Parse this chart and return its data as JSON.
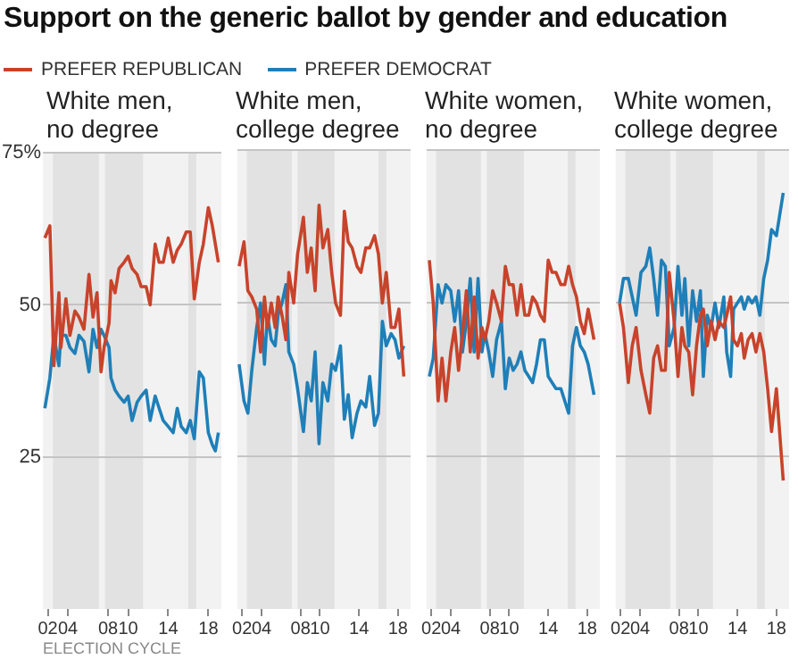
{
  "chart_data": [
    {
      "type": "line",
      "title": "Support on the generic ballot by gender and education",
      "subtitle": "White men,\nno degree",
      "xlabel": "ELECTION CYCLE",
      "legend": "top",
      "grid": "y",
      "x": [
        2001.7,
        2002.2,
        2002.6,
        2003.1,
        2003.3,
        2003.8,
        2004.2,
        2004.7,
        2005.1,
        2005.6,
        2006.1,
        2006.5,
        2006.9,
        2007.3,
        2007.6,
        2008.1,
        2008.3,
        2008.7,
        2009.1,
        2009.6,
        2010,
        2010.4,
        2010.9,
        2011.3,
        2011.8,
        2012.2,
        2012.7,
        2013.1,
        2013.5,
        2014,
        2014.5,
        2014.9,
        2015.3,
        2015.8,
        2016.2,
        2016.6,
        2017.1,
        2017.5,
        2018,
        2018.4,
        2018.7,
        2019.0
      ],
      "series": [
        {
          "name": "PREFER REPUBLICAN",
          "color": "#c8432b",
          "values": [
            61,
            63,
            40,
            52,
            43,
            51,
            45,
            49,
            48,
            46,
            55,
            48,
            52,
            39,
            43,
            47,
            54,
            52,
            56,
            57,
            58,
            56,
            55,
            53,
            53,
            50,
            60,
            57,
            57,
            61,
            57,
            59,
            60,
            62,
            62,
            51,
            57,
            60,
            66,
            63,
            60,
            57
          ]
        },
        {
          "name": "PREFER DEMOCRAT",
          "color": "#1f7fb8",
          "values": [
            33,
            38,
            45,
            40,
            45,
            45,
            43,
            42,
            45,
            44,
            39,
            46,
            43,
            46,
            45,
            43,
            38,
            36,
            35,
            34,
            35,
            31,
            34,
            35,
            36,
            31,
            35,
            33,
            31,
            30,
            29,
            33,
            30,
            29,
            31,
            28,
            39,
            38,
            29,
            27,
            26,
            29
          ]
        }
      ],
      "xlim": [
        2001.5,
        2019.3
      ],
      "xticks": [
        {
          "value": 2002,
          "label": "02"
        },
        {
          "value": 2004,
          "label": "04"
        },
        {
          "value": 2008,
          "label": "08"
        },
        {
          "value": 2010,
          "label": "10"
        },
        {
          "value": 2014,
          "label": "14"
        },
        {
          "value": 2018,
          "label": "18"
        }
      ],
      "ylim": [
        0,
        75
      ],
      "yticks": [
        {
          "value": 75,
          "label": "75%"
        },
        50,
        25
      ],
      "bands": [
        {
          "axis": "x",
          "from": 2002.5,
          "to": 2007.1,
          "color": "#e2e2e2"
        },
        {
          "axis": "x",
          "from": 2007.7,
          "to": 2011.5,
          "color": "#e2e2e2"
        },
        {
          "axis": "x",
          "from": 2016.0,
          "to": 2016.8,
          "color": "#e2e2e2"
        }
      ]
    },
    {
      "type": "line",
      "title": "White men,\ncollege degree",
      "grid": "y",
      "tick_labels": "x",
      "x": [
        2001.7,
        2002.2,
        2002.6,
        2003.0,
        2003.5,
        2003.9,
        2004.3,
        2004.6,
        2005.0,
        2005.4,
        2005.7,
        2006.1,
        2006.5,
        2006.8,
        2007.3,
        2007.7,
        2008.3,
        2008.7,
        2009.1,
        2009.5,
        2009.9,
        2010.3,
        2010.8,
        2011.2,
        2011.6,
        2012.1,
        2012.5,
        2012.9,
        2013.3,
        2013.8,
        2014.2,
        2014.7,
        2015.1,
        2015.6,
        2016.0,
        2016.4,
        2016.8,
        2017.3,
        2017.7,
        2018.1,
        2018.6
      ],
      "series": [
        {
          "color": "#c8432b",
          "values": [
            56,
            60,
            52,
            51,
            49,
            42,
            51,
            46,
            50,
            46,
            51,
            48,
            44,
            55,
            50,
            58,
            64,
            55,
            59,
            52,
            66,
            59,
            62,
            55,
            50,
            48,
            65,
            60,
            59,
            56,
            55,
            59,
            59,
            61,
            58,
            50,
            55,
            46,
            46,
            49,
            38
          ]
        },
        {
          "color": "#1f7fb8",
          "values": [
            40,
            34,
            32,
            39,
            46,
            50,
            40,
            48,
            44,
            43,
            48,
            50,
            53,
            42,
            40,
            36,
            29,
            37,
            34,
            42,
            27,
            37,
            34,
            40,
            39,
            43,
            31,
            35,
            28,
            32,
            34,
            33,
            38,
            30,
            32,
            47,
            43,
            45,
            44,
            41,
            43
          ]
        }
      ],
      "xlim": [
        2001.5,
        2019.3
      ],
      "xticks": [
        {
          "value": 2002,
          "label": "02"
        },
        {
          "value": 2004,
          "label": "04"
        },
        {
          "value": 2008,
          "label": "08"
        },
        {
          "value": 2010,
          "label": "10"
        },
        {
          "value": 2014,
          "label": "14"
        },
        {
          "value": 2018,
          "label": "18"
        }
      ],
      "ylim": [
        0,
        75
      ],
      "yticks": [
        75,
        50,
        25
      ],
      "bands": [
        {
          "axis": "x",
          "from": 2002.5,
          "to": 2007.1,
          "color": "#e2e2e2"
        },
        {
          "axis": "x",
          "from": 2007.7,
          "to": 2011.5,
          "color": "#e2e2e2"
        },
        {
          "axis": "x",
          "from": 2016.0,
          "to": 2016.8,
          "color": "#e2e2e2"
        }
      ]
    },
    {
      "type": "line",
      "title": "White women,\nno degree",
      "grid": "y",
      "tick_labels": "x",
      "x": [
        2001.8,
        2002.2,
        2002.7,
        2003.1,
        2003.5,
        2004.0,
        2004.4,
        2004.8,
        2005.2,
        2005.6,
        2006.0,
        2006.4,
        2006.8,
        2007.2,
        2007.5,
        2007.9,
        2008.3,
        2008.7,
        2009.2,
        2009.6,
        2010.0,
        2010.4,
        2010.8,
        2011.2,
        2011.6,
        2012.0,
        2012.4,
        2012.8,
        2013.2,
        2013.6,
        2014.0,
        2014.4,
        2014.8,
        2015.3,
        2015.7,
        2016.1,
        2016.5,
        2016.9,
        2017.3,
        2017.7,
        2018.1,
        2018.7
      ],
      "series": [
        {
          "color": "#c8432b",
          "values": [
            57,
            50,
            34,
            41,
            34,
            42,
            46,
            39,
            45,
            52,
            42,
            51,
            41,
            46,
            44,
            47,
            52,
            50,
            47,
            56,
            53,
            53,
            48,
            53,
            48,
            48,
            51,
            50,
            48,
            47,
            57,
            55,
            55,
            53,
            53,
            56,
            53,
            51,
            47,
            45,
            49,
            44
          ]
        },
        {
          "color": "#1f7fb8",
          "values": [
            38,
            41,
            53,
            50,
            53,
            52,
            47,
            52,
            42,
            47,
            54,
            42,
            54,
            42,
            45,
            42,
            38,
            44,
            47,
            36,
            41,
            39,
            40,
            42,
            39,
            38,
            37,
            40,
            44,
            44,
            38,
            37,
            36,
            36,
            34,
            32,
            43,
            46,
            43,
            42,
            40,
            35
          ]
        }
      ],
      "xlim": [
        2001.5,
        2019.3
      ],
      "xticks": [
        {
          "value": 2002,
          "label": "02"
        },
        {
          "value": 2004,
          "label": "04"
        },
        {
          "value": 2008,
          "label": "08"
        },
        {
          "value": 2010,
          "label": "10"
        },
        {
          "value": 2014,
          "label": "14"
        },
        {
          "value": 2018,
          "label": "18"
        }
      ],
      "ylim": [
        0,
        75
      ],
      "yticks": [
        75,
        50,
        25
      ],
      "bands": [
        {
          "axis": "x",
          "from": 2002.5,
          "to": 2007.1,
          "color": "#e2e2e2"
        },
        {
          "axis": "x",
          "from": 2007.7,
          "to": 2011.5,
          "color": "#e2e2e2"
        },
        {
          "axis": "x",
          "from": 2016.0,
          "to": 2016.8,
          "color": "#e2e2e2"
        }
      ]
    },
    {
      "type": "line",
      "title": "White women,\ncollege degree",
      "grid": "y",
      "tick_labels": "x",
      "x": [
        2001.9,
        2002.3,
        2002.8,
        2003.2,
        2003.6,
        2004.1,
        2004.6,
        2005.0,
        2005.4,
        2005.8,
        2006.2,
        2006.6,
        2007.0,
        2007.5,
        2007.9,
        2008.3,
        2008.6,
        2009.0,
        2009.4,
        2009.8,
        2010.2,
        2010.5,
        2010.9,
        2011.3,
        2011.7,
        2012.1,
        2012.6,
        2012.9,
        2013.3,
        2013.6,
        2014.0,
        2014.4,
        2014.7,
        2015.1,
        2015.5,
        2015.9,
        2016.3,
        2016.7,
        2017.1,
        2017.5,
        2018.0,
        2018.7
      ],
      "series": [
        {
          "color": "#c8432b",
          "values": [
            50,
            46,
            37,
            43,
            46,
            39,
            35,
            32,
            41,
            43,
            39,
            39,
            55,
            47,
            38,
            46,
            43,
            42,
            35,
            43,
            48,
            49,
            43,
            47,
            44,
            47,
            46,
            48,
            51,
            44,
            43,
            45,
            41,
            44,
            45,
            42,
            45,
            42,
            36,
            29,
            36,
            21
          ]
        },
        {
          "color": "#1f7fb8",
          "values": [
            50,
            54,
            54,
            51,
            48,
            55,
            56,
            59,
            54,
            48,
            57,
            56,
            43,
            46,
            56,
            48,
            54,
            43,
            52,
            47,
            52,
            38,
            48,
            46,
            50,
            46,
            51,
            42,
            38,
            49,
            50,
            51,
            49,
            51,
            50,
            51,
            48,
            54,
            57,
            62,
            61,
            68
          ]
        }
      ],
      "xlim": [
        2001.5,
        2019.3
      ],
      "xticks": [
        {
          "value": 2002,
          "label": "02"
        },
        {
          "value": 2004,
          "label": "04"
        },
        {
          "value": 2008,
          "label": "08"
        },
        {
          "value": 2010,
          "label": "10"
        },
        {
          "value": 2014,
          "label": "14"
        },
        {
          "value": 2018,
          "label": "18"
        }
      ],
      "ylim": [
        0,
        75
      ],
      "yticks": [
        75,
        50,
        25
      ],
      "bands": [
        {
          "axis": "x",
          "from": 2002.5,
          "to": 2007.1,
          "color": "#e2e2e2"
        },
        {
          "axis": "x",
          "from": 2007.7,
          "to": 2011.5,
          "color": "#e2e2e2"
        },
        {
          "axis": "x",
          "from": 2016.0,
          "to": 2016.8,
          "color": "#e2e2e2"
        }
      ]
    }
  ]
}
